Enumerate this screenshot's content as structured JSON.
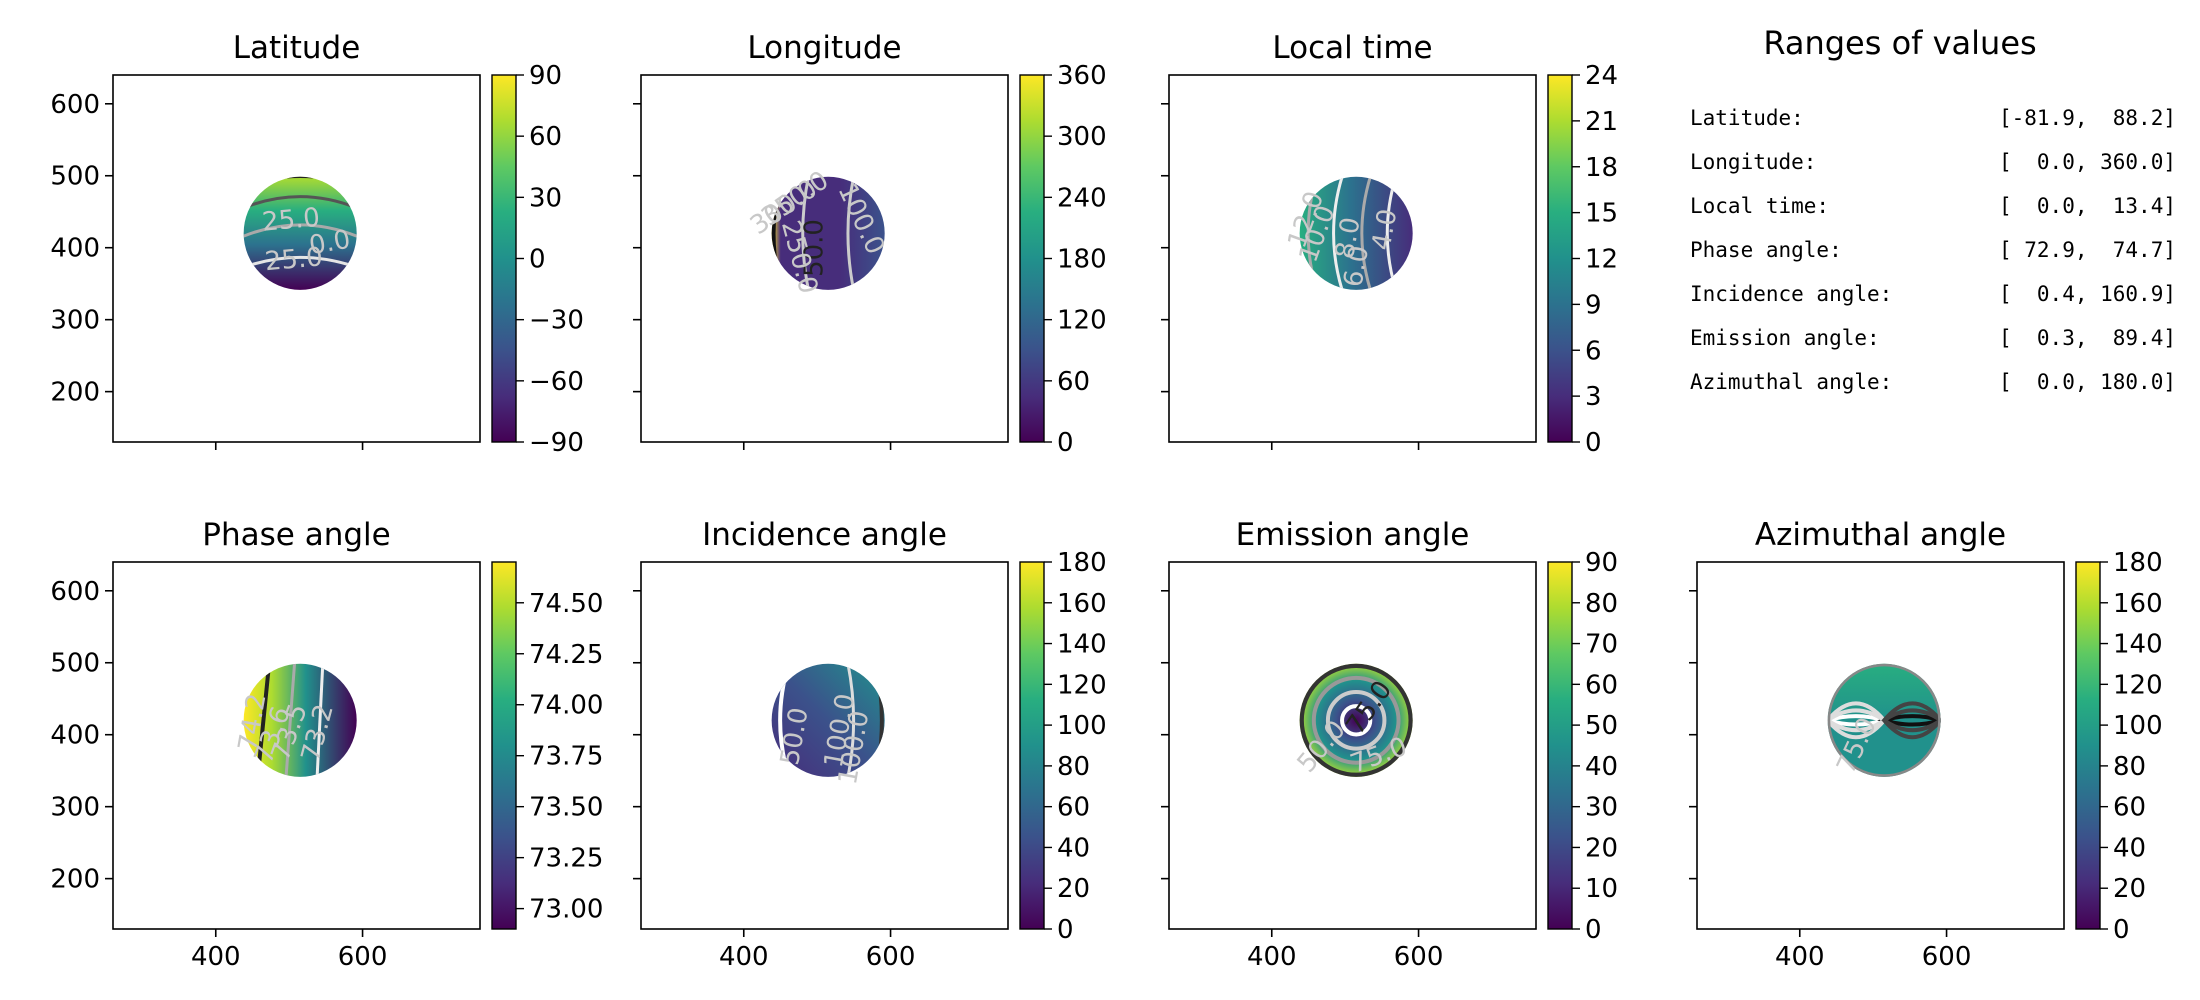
{
  "chart_data": [
    {
      "type": "heatmap",
      "title": "Latitude",
      "xlabel": "",
      "ylabel": "",
      "xlim": [
        260,
        760
      ],
      "ylim": [
        130,
        640
      ],
      "yticks": [
        200,
        300,
        400,
        500,
        600
      ],
      "xticks": [
        400,
        600
      ],
      "show_xtick_labels": false,
      "show_ytick_labels": true,
      "disk": {
        "center": [
          515,
          420
        ],
        "radius": 77
      },
      "colormap": "viridis",
      "colorbar": {
        "min": -90,
        "max": 90,
        "ticks": [
          "90",
          "60",
          "30",
          "0",
          "−30",
          "−60",
          "−90"
        ]
      },
      "contour_labels": [
        "25.0",
        "25.0",
        "0.0"
      ]
    },
    {
      "type": "heatmap",
      "title": "Longitude",
      "xlabel": "",
      "ylabel": "",
      "xlim": [
        260,
        760
      ],
      "ylim": [
        130,
        640
      ],
      "yticks": [
        200,
        300,
        400,
        500,
        600
      ],
      "xticks": [
        400,
        600
      ],
      "show_xtick_labels": false,
      "show_ytick_labels": false,
      "disk": {
        "center": [
          515,
          420
        ],
        "radius": 77
      },
      "colormap": "viridis",
      "colorbar": {
        "min": 0,
        "max": 360,
        "ticks": [
          "360",
          "300",
          "240",
          "180",
          "120",
          "60",
          "0"
        ]
      },
      "contour_labels": [
        "50.0",
        "100.0",
        "350.0",
        "250.0",
        "300.0"
      ]
    },
    {
      "type": "heatmap",
      "title": "Local time",
      "xlabel": "",
      "ylabel": "",
      "xlim": [
        260,
        760
      ],
      "ylim": [
        130,
        640
      ],
      "yticks": [
        200,
        300,
        400,
        500,
        600
      ],
      "xticks": [
        400,
        600
      ],
      "show_xtick_labels": false,
      "show_ytick_labels": false,
      "disk": {
        "center": [
          515,
          420
        ],
        "radius": 77
      },
      "colormap": "viridis",
      "colorbar": {
        "min": 0,
        "max": 24,
        "ticks": [
          "24",
          "21",
          "18",
          "15",
          "12",
          "9",
          "6",
          "3",
          "0"
        ]
      },
      "contour_labels": [
        "12.0",
        "10.0",
        "8.0",
        "6.0",
        "4.0"
      ]
    },
    {
      "type": "heatmap",
      "title": "Phase angle",
      "xlabel": "",
      "ylabel": "",
      "xlim": [
        260,
        760
      ],
      "ylim": [
        130,
        640
      ],
      "yticks": [
        200,
        300,
        400,
        500,
        600
      ],
      "xticks": [
        400,
        600
      ],
      "show_xtick_labels": true,
      "show_ytick_labels": true,
      "disk": {
        "center": [
          515,
          420
        ],
        "radius": 77
      },
      "colormap": "viridis",
      "colorbar": {
        "min": 72.9,
        "max": 74.7,
        "ticks": [
          "74.50",
          "74.25",
          "74.00",
          "73.75",
          "73.50",
          "73.25",
          "73.00"
        ]
      },
      "contour_labels": [
        "74.2",
        "73.6",
        "73.2",
        "73.5"
      ]
    },
    {
      "type": "heatmap",
      "title": "Incidence angle",
      "xlabel": "",
      "ylabel": "",
      "xlim": [
        260,
        760
      ],
      "ylim": [
        130,
        640
      ],
      "yticks": [
        200,
        300,
        400,
        500,
        600
      ],
      "xticks": [
        400,
        600
      ],
      "show_xtick_labels": true,
      "show_ytick_labels": false,
      "disk": {
        "center": [
          515,
          420
        ],
        "radius": 77
      },
      "colormap": "viridis",
      "colorbar": {
        "min": 0,
        "max": 180,
        "ticks": [
          "180",
          "160",
          "140",
          "120",
          "100",
          "80",
          "60",
          "40",
          "20",
          "0"
        ]
      },
      "contour_labels": [
        "50.0",
        "100.0",
        "100.0"
      ]
    },
    {
      "type": "heatmap",
      "title": "Emission angle",
      "xlabel": "",
      "ylabel": "",
      "xlim": [
        260,
        760
      ],
      "ylim": [
        130,
        640
      ],
      "yticks": [
        200,
        300,
        400,
        500,
        600
      ],
      "xticks": [
        400,
        600
      ],
      "show_xtick_labels": true,
      "show_ytick_labels": false,
      "disk": {
        "center": [
          515,
          420
        ],
        "radius": 77
      },
      "colormap": "viridis",
      "colorbar": {
        "min": 0,
        "max": 90,
        "ticks": [
          "90",
          "80",
          "70",
          "60",
          "50",
          "40",
          "30",
          "20",
          "10",
          "0"
        ]
      },
      "contour_labels": [
        "75.0",
        "50.0",
        "75.0"
      ]
    },
    {
      "type": "heatmap",
      "title": "Azimuthal angle",
      "xlabel": "",
      "ylabel": "",
      "xlim": [
        260,
        760
      ],
      "ylim": [
        130,
        640
      ],
      "yticks": [
        200,
        300,
        400,
        500,
        600
      ],
      "xticks": [
        400,
        600
      ],
      "show_xtick_labels": true,
      "show_ytick_labels": false,
      "disk": {
        "center": [
          515,
          420
        ],
        "radius": 77
      },
      "colormap": "viridis",
      "colorbar": {
        "min": 0,
        "max": 180,
        "ticks": [
          "180",
          "160",
          "140",
          "120",
          "100",
          "80",
          "60",
          "40",
          "20",
          "0"
        ]
      },
      "contour_labels": [
        "75.0"
      ]
    },
    {
      "type": "table",
      "title": "Ranges of values",
      "rows": [
        {
          "label": "Latitude:",
          "value": "[-81.9,  88.2]"
        },
        {
          "label": "Longitude:",
          "value": "[  0.0, 360.0]"
        },
        {
          "label": "Local time:",
          "value": "[  0.0,  13.4]"
        },
        {
          "label": "Phase angle:",
          "value": "[ 72.9,  74.7]"
        },
        {
          "label": "Incidence angle:",
          "value": "[  0.4, 160.9]"
        },
        {
          "label": "Emission angle:",
          "value": "[  0.3,  89.4]"
        },
        {
          "label": "Azimuthal angle:",
          "value": "[  0.0, 180.0]"
        }
      ]
    }
  ]
}
